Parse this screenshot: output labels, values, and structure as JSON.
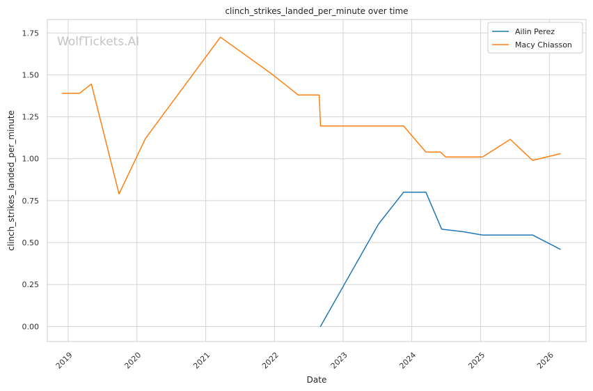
{
  "watermark": "WolfTickets.AI",
  "colors": {
    "grid": "#d3d3d3",
    "axes_edge": "#cccccc",
    "background": "#ffffff",
    "series": [
      "#1f77b4",
      "#ff7f0e"
    ]
  },
  "chart_data": {
    "type": "line",
    "title": "clinch_strikes_landed_per_minute over time",
    "xlabel": "Date",
    "ylabel": "clinch_strikes_landed_per_minute",
    "xlim": [
      "2018-09-12",
      "2026-07-15"
    ],
    "ylim": [
      -0.09,
      1.83
    ],
    "x_ticks": [
      "2019",
      "2020",
      "2021",
      "2022",
      "2023",
      "2024",
      "2025",
      "2026"
    ],
    "x_tick_dates": [
      "2019-01-01",
      "2020-01-01",
      "2021-01-01",
      "2022-01-01",
      "2023-01-01",
      "2024-01-01",
      "2025-01-01",
      "2026-01-01"
    ],
    "y_ticks": [
      0.0,
      0.25,
      0.5,
      0.75,
      1.0,
      1.25,
      1.5,
      1.75
    ],
    "y_tick_labels": [
      "0.00",
      "0.25",
      "0.50",
      "0.75",
      "1.00",
      "1.25",
      "1.50",
      "1.75"
    ],
    "grid": true,
    "legend": "top-right",
    "series": [
      {
        "name": "Ailin Perez",
        "color": "#1f77b4",
        "x": [
          "2022-09-03",
          "2023-07-08",
          "2023-11-18",
          "2024-03-16",
          "2024-06-08",
          "2024-09-28",
          "2025-01-11",
          "2025-10-04",
          "2026-02-28"
        ],
        "y": [
          0.0,
          0.61,
          0.8,
          0.8,
          0.58,
          0.565,
          0.545,
          0.545,
          0.46
        ]
      },
      {
        "name": "Macy Chiasson",
        "color": "#ff7f0e",
        "x": [
          "2018-11-30",
          "2019-03-02",
          "2019-05-04",
          "2019-09-28",
          "2020-02-15",
          "2021-03-20",
          "2021-12-18",
          "2022-05-07",
          "2022-08-27",
          "2022-09-03",
          "2023-11-18",
          "2024-03-16",
          "2024-06-01",
          "2024-06-29",
          "2025-01-11",
          "2025-06-07",
          "2025-10-04",
          "2026-02-28"
        ],
        "y": [
          1.39,
          1.39,
          1.445,
          0.79,
          1.12,
          1.725,
          1.505,
          1.38,
          1.38,
          1.195,
          1.195,
          1.04,
          1.04,
          1.01,
          1.01,
          1.115,
          0.99,
          1.03
        ]
      }
    ]
  }
}
